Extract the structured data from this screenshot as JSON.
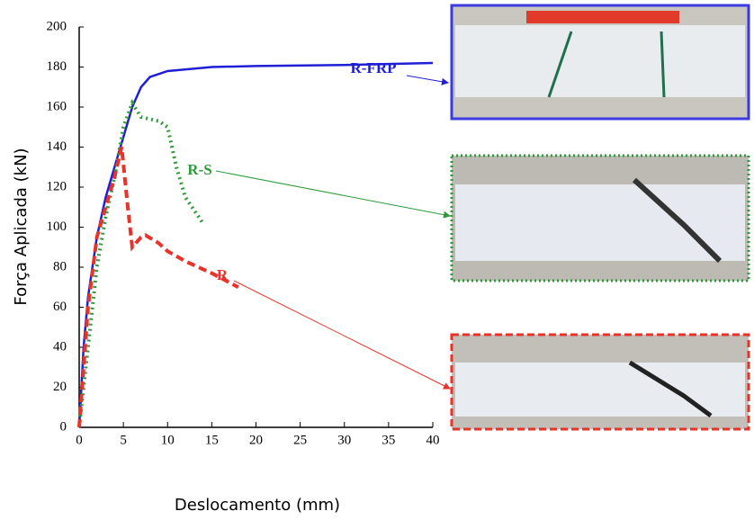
{
  "chart_data": {
    "type": "line",
    "xlabel": "Deslocamento (mm)",
    "ylabel": "Força Aplicada (kN)",
    "xlim": [
      0,
      40
    ],
    "xticks": [
      0,
      5,
      10,
      15,
      20,
      25,
      30,
      35,
      40
    ],
    "ylim": [
      0,
      200
    ],
    "yticks": [
      0,
      20,
      40,
      60,
      80,
      100,
      120,
      140,
      160,
      180,
      200
    ],
    "series": [
      {
        "name": "R-FRP",
        "color": "#1f1fd6",
        "style": "solid",
        "x": [
          0,
          0.5,
          1,
          2,
          3,
          4,
          5,
          6,
          7,
          8,
          10,
          15,
          20,
          30,
          40
        ],
        "values": [
          0,
          40,
          65,
          95,
          115,
          130,
          145,
          160,
          170,
          175,
          178,
          180,
          180.5,
          181,
          182
        ]
      },
      {
        "name": "R-S",
        "color": "#2e9a3a",
        "style": "dotted",
        "x": [
          0,
          1,
          2,
          3,
          4,
          5,
          6,
          7,
          9,
          10,
          11,
          12,
          14
        ],
        "values": [
          0,
          40,
          80,
          105,
          125,
          150,
          162,
          155,
          153,
          150,
          130,
          115,
          102
        ]
      },
      {
        "name": "R",
        "color": "#e8322a",
        "style": "dashed",
        "x": [
          0,
          0.5,
          1,
          2,
          3,
          4,
          4.8,
          5.5,
          6,
          7,
          7.5,
          9,
          10,
          12,
          15,
          18
        ],
        "values": [
          0,
          30,
          60,
          95,
          110,
          125,
          140,
          110,
          90,
          95,
          96,
          92,
          88,
          83,
          77,
          70
        ]
      }
    ]
  }
}
